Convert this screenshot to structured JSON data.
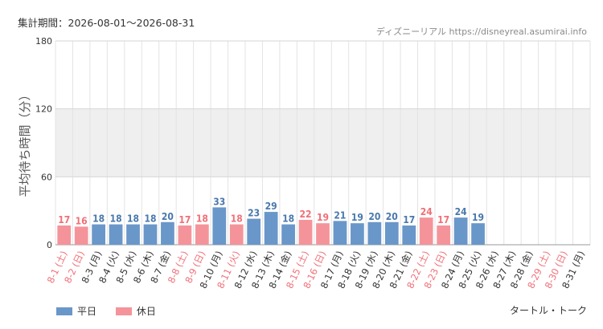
{
  "header": {
    "period_label": "集計期間：2026-08-01～2026-08-31",
    "credit": "ディズニーリアル https://disneyreal.asumirai.info"
  },
  "footer": {
    "attraction_name": "タートル・トーク"
  },
  "colors": {
    "weekday": "#6a97c9",
    "holiday": "#f4949a",
    "weekday_label": "#4a79ad",
    "holiday_label": "#f07078",
    "band": "#efefef",
    "grid": "#e3e3e3"
  },
  "chart_data": {
    "type": "bar",
    "ylabel": "平均待ち時間（分）",
    "ylim": [
      0,
      180
    ],
    "yticks": [
      "0",
      "60",
      "120",
      "180"
    ],
    "categories": [
      "8-1 (土)",
      "8-2 (日)",
      "8-3 (月)",
      "8-4 (火)",
      "8-5 (水)",
      "8-6 (木)",
      "8-7 (金)",
      "8-8 (土)",
      "8-9 (日)",
      "8-10 (月)",
      "8-11 (火)",
      "8-12 (水)",
      "8-13 (木)",
      "8-14 (金)",
      "8-15 (土)",
      "8-16 (日)",
      "8-17 (月)",
      "8-18 (火)",
      "8-19 (水)",
      "8-20 (木)",
      "8-21 (金)",
      "8-22 (土)",
      "8-23 (日)",
      "8-24 (月)",
      "8-25 (火)",
      "8-26 (水)",
      "8-27 (木)",
      "8-28 (金)",
      "8-29 (土)",
      "8-30 (日)",
      "8-31 (月)"
    ],
    "values": [
      17,
      16,
      18,
      18,
      18,
      18,
      20,
      17,
      18,
      33,
      18,
      23,
      29,
      18,
      22,
      19,
      21,
      19,
      20,
      20,
      17,
      24,
      17,
      24,
      19,
      null,
      null,
      null,
      null,
      null,
      null
    ],
    "day_types": [
      "holiday",
      "holiday",
      "weekday",
      "weekday",
      "weekday",
      "weekday",
      "weekday",
      "holiday",
      "holiday",
      "weekday",
      "holiday",
      "weekday",
      "weekday",
      "weekday",
      "holiday",
      "holiday",
      "weekday",
      "weekday",
      "weekday",
      "weekday",
      "weekday",
      "holiday",
      "holiday",
      "weekday",
      "weekday",
      "weekday",
      "weekday",
      "weekday",
      "holiday",
      "holiday",
      "weekday"
    ],
    "legend": [
      {
        "key": "weekday",
        "label": "平日"
      },
      {
        "key": "holiday",
        "label": "休日"
      }
    ],
    "legend_position": "bottom-left",
    "grid": true
  }
}
